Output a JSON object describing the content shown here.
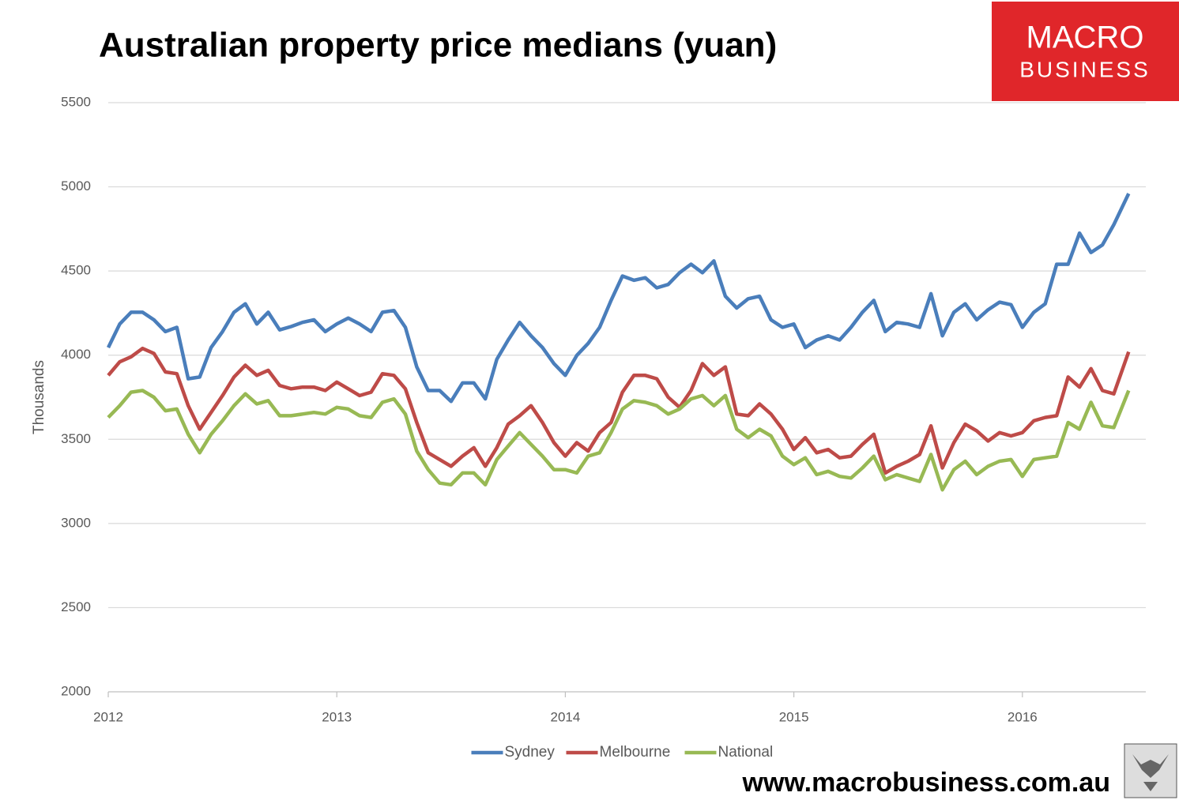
{
  "chart_data": {
    "type": "line",
    "title": "Australian property price medians (yuan)",
    "ylabel": "Thousands",
    "logo": [
      "MACRO",
      "BUSINESS"
    ],
    "footer": "www.macrobusiness.com.au",
    "xlim": [
      2012,
      2016.54
    ],
    "xticks": [
      2012,
      2013,
      2014,
      2015,
      2016
    ],
    "ylim": [
      2000,
      5500
    ],
    "yticks": [
      2000,
      2500,
      3000,
      3500,
      4000,
      4500,
      5000,
      5500
    ],
    "grid": true,
    "legend": "bottom",
    "x": [
      2012.0,
      2012.05,
      2012.1,
      2012.15,
      2012.2,
      2012.25,
      2012.3,
      2012.35,
      2012.4,
      2012.45,
      2012.5,
      2012.55,
      2012.6,
      2012.65,
      2012.7,
      2012.75,
      2012.8,
      2012.85,
      2012.9,
      2012.95,
      2013.0,
      2013.05,
      2013.1,
      2013.15,
      2013.2,
      2013.25,
      2013.3,
      2013.35,
      2013.4,
      2013.45,
      2013.5,
      2013.55,
      2013.6,
      2013.65,
      2013.7,
      2013.75,
      2013.8,
      2013.85,
      2013.9,
      2013.95,
      2014.0,
      2014.05,
      2014.1,
      2014.15,
      2014.2,
      2014.25,
      2014.3,
      2014.35,
      2014.4,
      2014.45,
      2014.5,
      2014.55,
      2014.6,
      2014.65,
      2014.7,
      2014.75,
      2014.8,
      2014.85,
      2014.9,
      2014.95,
      2015.0,
      2015.05,
      2015.1,
      2015.15,
      2015.2,
      2015.25,
      2015.3,
      2015.35,
      2015.4,
      2015.45,
      2015.5,
      2015.55,
      2015.6,
      2015.65,
      2015.7,
      2015.75,
      2015.8,
      2015.85,
      2015.9,
      2015.95,
      2016.0,
      2016.05,
      2016.1,
      2016.15,
      2016.2,
      2016.25,
      2016.3,
      2016.35,
      2016.4,
      2016.465
    ],
    "series": [
      {
        "name": "Sydney",
        "color": "#4a7ebb",
        "values": [
          4045,
          4185,
          4255,
          4255,
          4210,
          4140,
          4165,
          3860,
          3870,
          4045,
          4140,
          4255,
          4305,
          4185,
          4255,
          4150,
          4170,
          4195,
          4210,
          4140,
          4185,
          4220,
          4185,
          4140,
          4255,
          4265,
          4165,
          3930,
          3790,
          3790,
          3725,
          3835,
          3835,
          3740,
          3975,
          4090,
          4195,
          4115,
          4045,
          3950,
          3880,
          3998,
          4070,
          4165,
          4325,
          4470,
          4445,
          4460,
          4400,
          4420,
          4490,
          4540,
          4490,
          4560,
          4350,
          4280,
          4335,
          4350,
          4210,
          4165,
          4185,
          4045,
          4090,
          4115,
          4090,
          4165,
          4255,
          4325,
          4140,
          4195,
          4185,
          4165,
          4365,
          4115,
          4255,
          4305,
          4210,
          4270,
          4315,
          4300,
          4165,
          4255,
          4305,
          4540,
          4540,
          4725,
          4610,
          4655,
          4775,
          4960
        ]
      },
      {
        "name": "Melbourne",
        "color": "#be4b48",
        "values": [
          3880,
          3960,
          3990,
          4040,
          4010,
          3900,
          3890,
          3700,
          3560,
          3660,
          3760,
          3870,
          3940,
          3880,
          3910,
          3820,
          3800,
          3810,
          3810,
          3790,
          3840,
          3800,
          3760,
          3780,
          3890,
          3880,
          3800,
          3600,
          3420,
          3380,
          3340,
          3400,
          3450,
          3340,
          3450,
          3590,
          3640,
          3700,
          3600,
          3480,
          3400,
          3480,
          3430,
          3540,
          3600,
          3780,
          3880,
          3880,
          3860,
          3750,
          3690,
          3790,
          3950,
          3880,
          3930,
          3650,
          3640,
          3710,
          3650,
          3560,
          3440,
          3510,
          3420,
          3440,
          3390,
          3400,
          3470,
          3530,
          3300,
          3340,
          3370,
          3410,
          3580,
          3330,
          3480,
          3590,
          3550,
          3490,
          3540,
          3520,
          3540,
          3610,
          3630,
          3640,
          3870,
          3810,
          3920,
          3790,
          3770,
          4020
        ]
      },
      {
        "name": "National",
        "color": "#98b954",
        "values": [
          3630,
          3700,
          3780,
          3790,
          3750,
          3670,
          3680,
          3530,
          3420,
          3530,
          3610,
          3700,
          3770,
          3710,
          3730,
          3640,
          3640,
          3650,
          3660,
          3650,
          3690,
          3680,
          3640,
          3630,
          3720,
          3740,
          3650,
          3430,
          3320,
          3240,
          3230,
          3300,
          3300,
          3230,
          3380,
          3460,
          3540,
          3470,
          3400,
          3320,
          3320,
          3300,
          3400,
          3420,
          3540,
          3680,
          3730,
          3720,
          3700,
          3650,
          3680,
          3740,
          3760,
          3700,
          3760,
          3560,
          3510,
          3560,
          3520,
          3400,
          3350,
          3390,
          3290,
          3310,
          3280,
          3270,
          3330,
          3400,
          3260,
          3290,
          3270,
          3250,
          3410,
          3200,
          3320,
          3370,
          3290,
          3340,
          3370,
          3380,
          3280,
          3380,
          3390,
          3400,
          3600,
          3560,
          3720,
          3580,
          3570,
          3790
        ]
      }
    ]
  }
}
